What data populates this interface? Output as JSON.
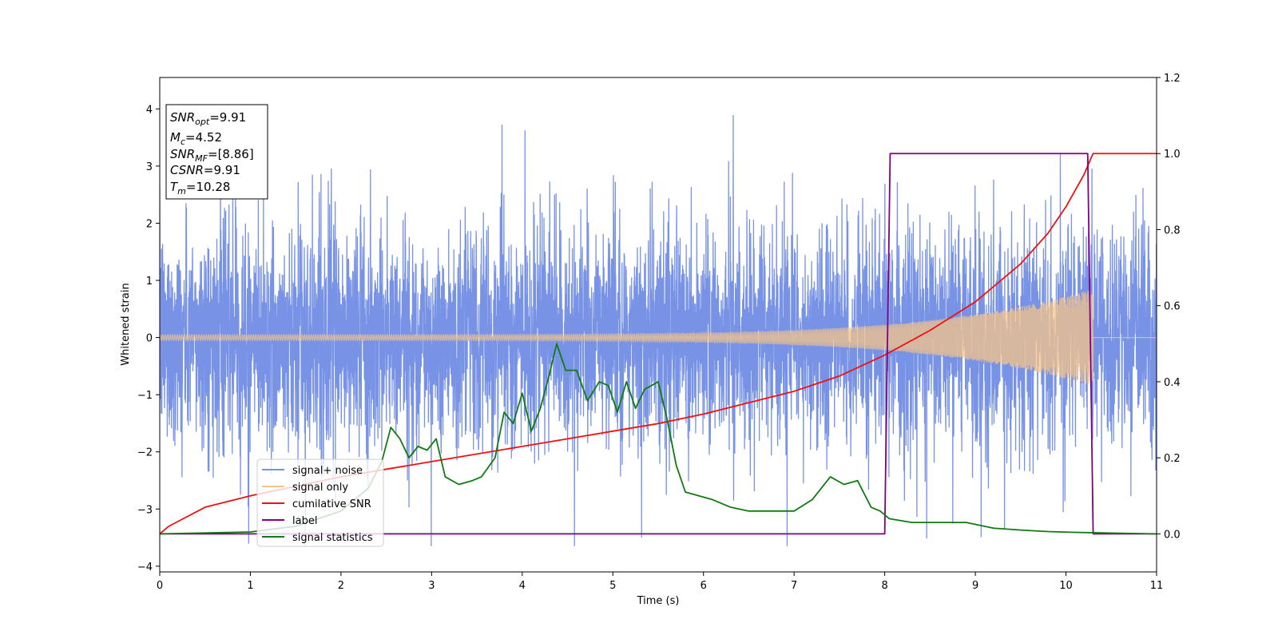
{
  "chart_data": {
    "type": "line",
    "xlabel": "Time (s)",
    "ylabel": "Whitened strain",
    "xlim": [
      0,
      11
    ],
    "ylim": [
      -4.1,
      4.55
    ],
    "y2lim": [
      -0.1,
      1.2
    ],
    "grid": false,
    "legend_placement": "lower-left",
    "x_ticks": [
      0,
      1,
      2,
      3,
      4,
      5,
      6,
      7,
      8,
      9,
      10,
      11
    ],
    "y_ticks": [
      -4,
      -3,
      -2,
      -1,
      0,
      1,
      2,
      3,
      4
    ],
    "y2_ticks": [
      0.0,
      0.2,
      0.4,
      0.6,
      0.8,
      1.0,
      1.2
    ],
    "annotation": [
      {
        "base": "SNR",
        "sub": "opt",
        "value": "=9.91"
      },
      {
        "base": "M",
        "sub": "c",
        "value": "=4.52"
      },
      {
        "base": "SNR",
        "sub": "MF",
        "value": "=[8.86]"
      },
      {
        "base": "CSNR",
        "sub": "",
        "value": "=9.91"
      },
      {
        "base": "T",
        "sub": "m",
        "value": "=10.28"
      }
    ],
    "series": [
      {
        "name": "signal+ noise",
        "axis": "left",
        "color": "#7893e6",
        "kind": "noise",
        "typical_range": [
          -1.4,
          1.4
        ],
        "peak_range": [
          -3.65,
          4.15
        ]
      },
      {
        "name": "signal only",
        "axis": "left",
        "color": "#f5c48a",
        "kind": "chirp",
        "amplitude_start": 0.05,
        "amplitude_end": 0.85,
        "end_time": 10.3
      },
      {
        "name": "cumilative SNR",
        "axis": "right",
        "color": "#ee1111",
        "x": [
          0,
          0.1,
          0.5,
          1,
          1.5,
          2,
          2.5,
          3,
          3.5,
          4,
          4.5,
          5,
          5.5,
          6,
          6.5,
          7,
          7.5,
          8,
          8.5,
          9,
          9.5,
          9.8,
          10,
          10.2,
          10.28,
          10.3,
          11
        ],
        "values": [
          0.0,
          0.02,
          0.07,
          0.1,
          0.125,
          0.15,
          0.17,
          0.19,
          0.21,
          0.23,
          0.25,
          0.27,
          0.29,
          0.315,
          0.345,
          0.375,
          0.415,
          0.47,
          0.535,
          0.61,
          0.71,
          0.79,
          0.86,
          0.945,
          0.99,
          1.0,
          1.0
        ]
      },
      {
        "name": "label",
        "axis": "right",
        "color": "#800080",
        "x": [
          0,
          8.0,
          8.06,
          10.24,
          10.3,
          11
        ],
        "values": [
          0,
          0,
          1,
          1,
          0,
          0
        ]
      },
      {
        "name": "signal statistics",
        "axis": "right",
        "color": "#117a11",
        "x": [
          0,
          1.0,
          1.5,
          2.0,
          2.3,
          2.45,
          2.55,
          2.65,
          2.75,
          2.85,
          2.95,
          3.05,
          3.15,
          3.3,
          3.45,
          3.55,
          3.7,
          3.8,
          3.9,
          4.0,
          4.1,
          4.2,
          4.3,
          4.38,
          4.48,
          4.6,
          4.72,
          4.85,
          4.95,
          5.05,
          5.15,
          5.25,
          5.35,
          5.5,
          5.6,
          5.7,
          5.8,
          5.95,
          6.1,
          6.3,
          6.5,
          6.8,
          7.0,
          7.2,
          7.4,
          7.55,
          7.7,
          7.85,
          7.95,
          8.05,
          8.3,
          8.6,
          8.9,
          9.2,
          9.5,
          9.8,
          10.1,
          10.3,
          10.5,
          11.0
        ],
        "values": [
          0.0,
          0.005,
          0.02,
          0.06,
          0.12,
          0.19,
          0.28,
          0.25,
          0.2,
          0.23,
          0.22,
          0.25,
          0.15,
          0.13,
          0.14,
          0.15,
          0.2,
          0.32,
          0.29,
          0.37,
          0.27,
          0.33,
          0.42,
          0.5,
          0.43,
          0.43,
          0.35,
          0.4,
          0.39,
          0.32,
          0.4,
          0.33,
          0.38,
          0.4,
          0.3,
          0.18,
          0.11,
          0.1,
          0.09,
          0.07,
          0.06,
          0.06,
          0.06,
          0.09,
          0.15,
          0.13,
          0.14,
          0.07,
          0.06,
          0.04,
          0.03,
          0.03,
          0.03,
          0.015,
          0.01,
          0.006,
          0.004,
          0.003,
          0.002,
          0.0
        ]
      }
    ]
  }
}
